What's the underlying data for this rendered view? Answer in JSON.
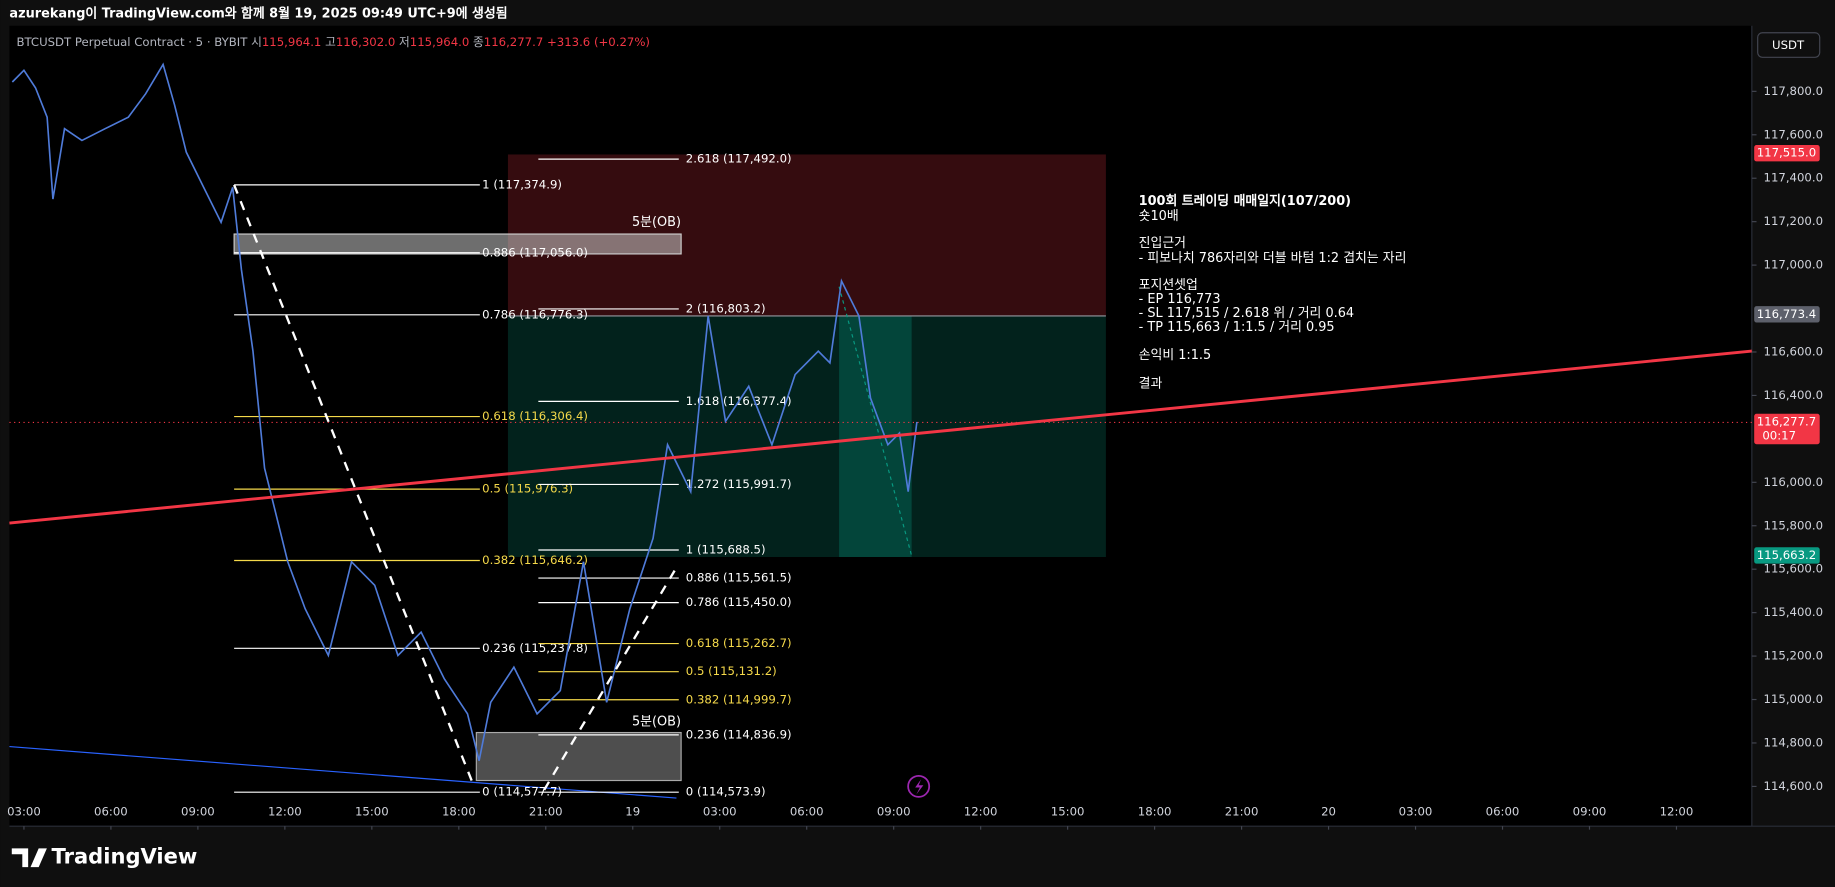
{
  "header": {
    "caption": "azurekang이 TradingView.com와 함께 8월 19, 2025 09:49 UTC+9에 생성됨"
  },
  "symbol": {
    "name": "BTCUSDT Perpetual Contract · 5 · BYBIT",
    "o_label": "시",
    "o": "115,964.1",
    "h_label": "고",
    "h": "116,302.0",
    "l_label": "저",
    "l": "115,964.0",
    "c_label": "종",
    "c": "116,277.7",
    "change": "+313.6 (+0.27%)"
  },
  "currency_button": "USDT",
  "chart_data": {
    "type": "line",
    "color": "#4f7bd9",
    "x": [
      2.6,
      3.0,
      3.4,
      3.8,
      4.0,
      4.4,
      5.0,
      5.8,
      6.6,
      7.2,
      7.8,
      8.2,
      8.6,
      9.2,
      9.8,
      10.2,
      10.5,
      10.9,
      11.3,
      11.7,
      12.1,
      12.7,
      13.5,
      14.3,
      15.1,
      15.9,
      16.7,
      17.5,
      18.3,
      18.7,
      19.1,
      19.9,
      20.7,
      21.5,
      22.3,
      23.1,
      23.9,
      24.7,
      25.2,
      26.0,
      26.6,
      27.2,
      28.0,
      28.8,
      29.6,
      30.4,
      30.8,
      31.2,
      31.8,
      32.2,
      32.8,
      33.2,
      33.5,
      33.8
    ],
    "values": [
      117843,
      117897,
      117816,
      117681,
      117304,
      117628,
      117574,
      117628,
      117681,
      117789,
      117924,
      117735,
      117520,
      117358,
      117197,
      117358,
      116981,
      116604,
      116065,
      115850,
      115634,
      115418,
      115203,
      115634,
      115526,
      115203,
      115310,
      115095,
      114934,
      114718,
      114987,
      115149,
      114934,
      115041,
      115634,
      114987,
      115418,
      115742,
      116173,
      115957,
      116766,
      116281,
      116442,
      116173,
      116496,
      116604,
      116550,
      116927,
      116766,
      116388,
      116173,
      116227,
      115957,
      116278
    ],
    "xlim": [
      2.5,
      62.6
    ],
    "ylim": [
      114417,
      118102
    ],
    "yticks": [
      {
        "value": 117800,
        "label": "117,800.0"
      },
      {
        "value": 117600,
        "label": "117,600.0"
      },
      {
        "value": 117400,
        "label": "117,400.0"
      },
      {
        "value": 117200,
        "label": "117,200.0"
      },
      {
        "value": 117000,
        "label": "117,000.0"
      },
      {
        "value": 116600,
        "label": "116,600.0"
      },
      {
        "value": 116400,
        "label": "116,400.0"
      },
      {
        "value": 116000,
        "label": "116,000.0"
      },
      {
        "value": 115800,
        "label": "115,800.0"
      },
      {
        "value": 115600,
        "label": "115,600.0"
      },
      {
        "value": 115400,
        "label": "115,400.0"
      },
      {
        "value": 115200,
        "label": "115,200.0"
      },
      {
        "value": 115000,
        "label": "115,000.0"
      },
      {
        "value": 114800,
        "label": "114,800.0"
      },
      {
        "value": 114600,
        "label": "114,600.0"
      }
    ],
    "xticks": [
      {
        "value": 3,
        "label": "03:00"
      },
      {
        "value": 6,
        "label": "06:00"
      },
      {
        "value": 9,
        "label": "09:00"
      },
      {
        "value": 12,
        "label": "12:00"
      },
      {
        "value": 15,
        "label": "15:00"
      },
      {
        "value": 18,
        "label": "18:00"
      },
      {
        "value": 21,
        "label": "21:00"
      },
      {
        "value": 24,
        "label": "19"
      },
      {
        "value": 27,
        "label": "03:00"
      },
      {
        "value": 30,
        "label": "06:00"
      },
      {
        "value": 33,
        "label": "09:00"
      },
      {
        "value": 36,
        "label": "12:00"
      },
      {
        "value": 39,
        "label": "15:00"
      },
      {
        "value": 42,
        "label": "18:00"
      },
      {
        "value": 45,
        "label": "21:00"
      },
      {
        "value": 48,
        "label": "20"
      },
      {
        "value": 51,
        "label": "03:00"
      },
      {
        "value": 54,
        "label": "06:00"
      },
      {
        "value": 57,
        "label": "09:00"
      },
      {
        "value": 60,
        "label": "12:00"
      }
    ],
    "price_tags": [
      {
        "value": 117515.0,
        "label": "117,515.0",
        "color": "#f23645"
      },
      {
        "value": 116773.4,
        "label": "116,773.4",
        "color": "#5d606b"
      },
      {
        "value": 116277.7,
        "label": "116,277.7",
        "color": "#f23645"
      },
      {
        "value": 115663.2,
        "label": "115,663.2",
        "color": "#089981"
      }
    ],
    "countdown": "00:17"
  },
  "fib_left": [
    "1 (117,374.9)",
    "0.886 (117,056.0)",
    "0.786 (116,776.3)",
    "0.618 (116,306.4)",
    "0.5 (115,976.3)",
    "0.382 (115,646.2)",
    "0.236 (115,237.8)",
    "0 (114,577.7)"
  ],
  "fib_right": [
    "2.618 (117,492.0)",
    "2 (116,803.2)",
    "1.618 (116,377.4)",
    "1.272 (115,991.7)",
    "1 (115,688.5)",
    "0.886 (115,561.5)",
    "0.786 (115,450.0)",
    "0.618 (115,262.7)",
    "0.5 (115,131.2)",
    "0.382 (114,999.7)",
    "0.236 (114,836.9)",
    "0 (114,573.9)"
  ],
  "ob_labels": [
    "5분(OB)",
    "5분(OB)"
  ],
  "notes": [
    "100회 트레이딩 매매일지(107/200)",
    "숏10배",
    "진입근거",
    "- 피보나치 786자리와 더블 바텀 1:2 겹치는 자리",
    "포지션셋업",
    "- EP 116,773",
    "- SL 117,515 / 2.618 위 / 거리 0.64",
    "- TP 115,663 / 1:1.5 / 거리 0.95",
    "손익비 1:1.5",
    "결과"
  ],
  "footer": {
    "brand": "TradingView"
  }
}
